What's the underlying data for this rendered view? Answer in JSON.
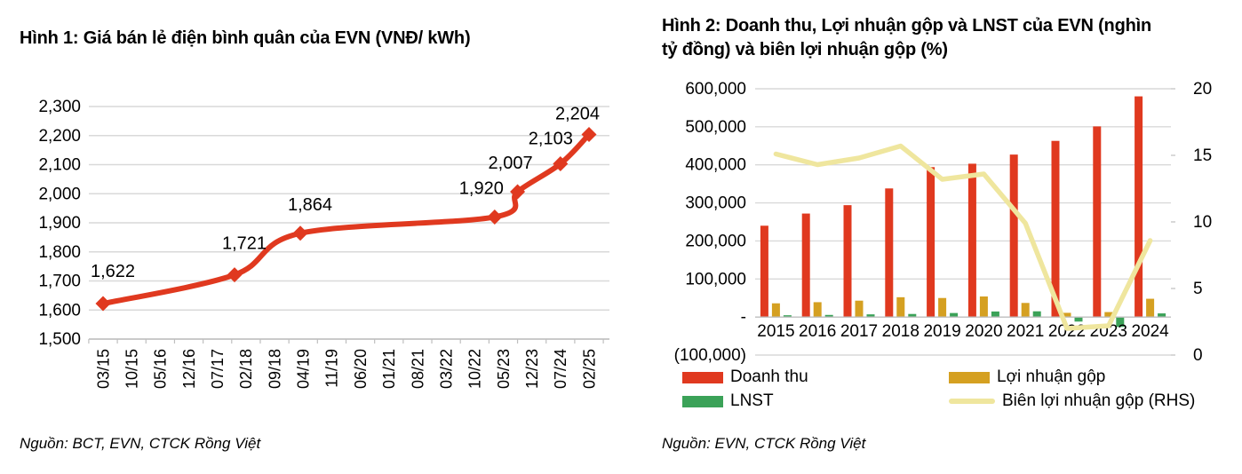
{
  "colors": {
    "grid": "#d9d9d9",
    "axis": "#bfbfbf",
    "text": "#000000",
    "revenue_red": "#e0391f",
    "gross_profit_gold": "#d5a021",
    "net_profit_green": "#3ba258",
    "margin_line_pale_yellow": "#efe69e"
  },
  "chart_data": [
    {
      "type": "line",
      "title": "Hình 1: Giá bán lẻ điện bình quân của EVN (VNĐ/ kWh)",
      "source": "Nguồn: BCT, EVN, CTCK Rồng Việt",
      "series_name": "Giá bán lẻ điện bình quân",
      "x_tick_labels": [
        "03/15",
        "10/15",
        "05/16",
        "12/16",
        "07/17",
        "02/18",
        "09/18",
        "04/19",
        "11/19",
        "06/20",
        "01/21",
        "08/21",
        "03/22",
        "10/22",
        "05/23",
        "12/23",
        "07/24",
        "02/25"
      ],
      "points": [
        {
          "x_tick": 0,
          "value": 1622,
          "label": "1,622"
        },
        {
          "x_tick": 4.6,
          "value": 1721,
          "label": "1,721"
        },
        {
          "x_tick": 6.9,
          "value": 1864,
          "label": "1,864"
        },
        {
          "x_tick": 13.7,
          "value": 1920,
          "label": "1,920"
        },
        {
          "x_tick": 14.5,
          "value": 2007,
          "label": "2,007"
        },
        {
          "x_tick": 16,
          "value": 2103,
          "label": "2,103"
        },
        {
          "x_tick": 17,
          "value": 2204,
          "label": "2,204"
        }
      ],
      "ylim": [
        1500,
        2300
      ],
      "y_step": 100,
      "y_tick_labels": [
        "1,500",
        "1,600",
        "1,700",
        "1,800",
        "1,900",
        "2,000",
        "2,100",
        "2,200",
        "2,300"
      ],
      "line_color": "#e0391f",
      "marker": "diamond",
      "smoothed": true,
      "grid": true
    },
    {
      "type": "bar+line",
      "title": "Hình 2: Doanh thu, Lợi nhuận gộp và LNST của EVN (nghìn tỷ đồng) và biên lợi nhuận gộp (%)",
      "title_lines": [
        "Hình 2: Doanh thu, Lợi nhuận gộp và LNST của EVN (nghìn",
        "tỷ đồng) và biên lợi nhuận gộp (%)"
      ],
      "source": "Nguồn: EVN,  CTCK Rồng Việt",
      "categories": [
        "2015",
        "2016",
        "2017",
        "2018",
        "2019",
        "2020",
        "2021",
        "2022",
        "2023",
        "2024"
      ],
      "bar_series": [
        {
          "name": "Doanh thu",
          "color": "#e0391f",
          "values": [
            240000,
            272000,
            294000,
            338000,
            394000,
            403000,
            427000,
            463000,
            501000,
            580000
          ]
        },
        {
          "name": "Lợi nhuận gộp",
          "color": "#d5a021",
          "values": [
            36000,
            39000,
            43000,
            52000,
            50000,
            54000,
            37000,
            11000,
            13000,
            48000
          ]
        },
        {
          "name": "LNST",
          "color": "#3ba258",
          "values": [
            4600,
            5500,
            7000,
            8000,
            10500,
            14500,
            15000,
            -12000,
            -26000,
            9500
          ]
        }
      ],
      "line_series": {
        "name": "Biên lợi nhuận gộp (RHS)",
        "color": "#efe69e",
        "axis": "right",
        "values": [
          15.1,
          14.3,
          14.8,
          15.7,
          13.2,
          13.6,
          9.9,
          2.0,
          2.2,
          8.6
        ]
      },
      "left_ylim": [
        -100000,
        600000
      ],
      "left_y_step": 100000,
      "left_y_tick_labels": [
        "(100,000)",
        "-",
        "100,000",
        "200,000",
        "300,000",
        "400,000",
        "500,000",
        "600,000"
      ],
      "right_ylim": [
        0,
        20
      ],
      "right_y_step": 5,
      "right_y_tick_labels": [
        "0",
        "5",
        "10",
        "15",
        "20"
      ],
      "legend_position": "bottom",
      "grid": true
    }
  ]
}
